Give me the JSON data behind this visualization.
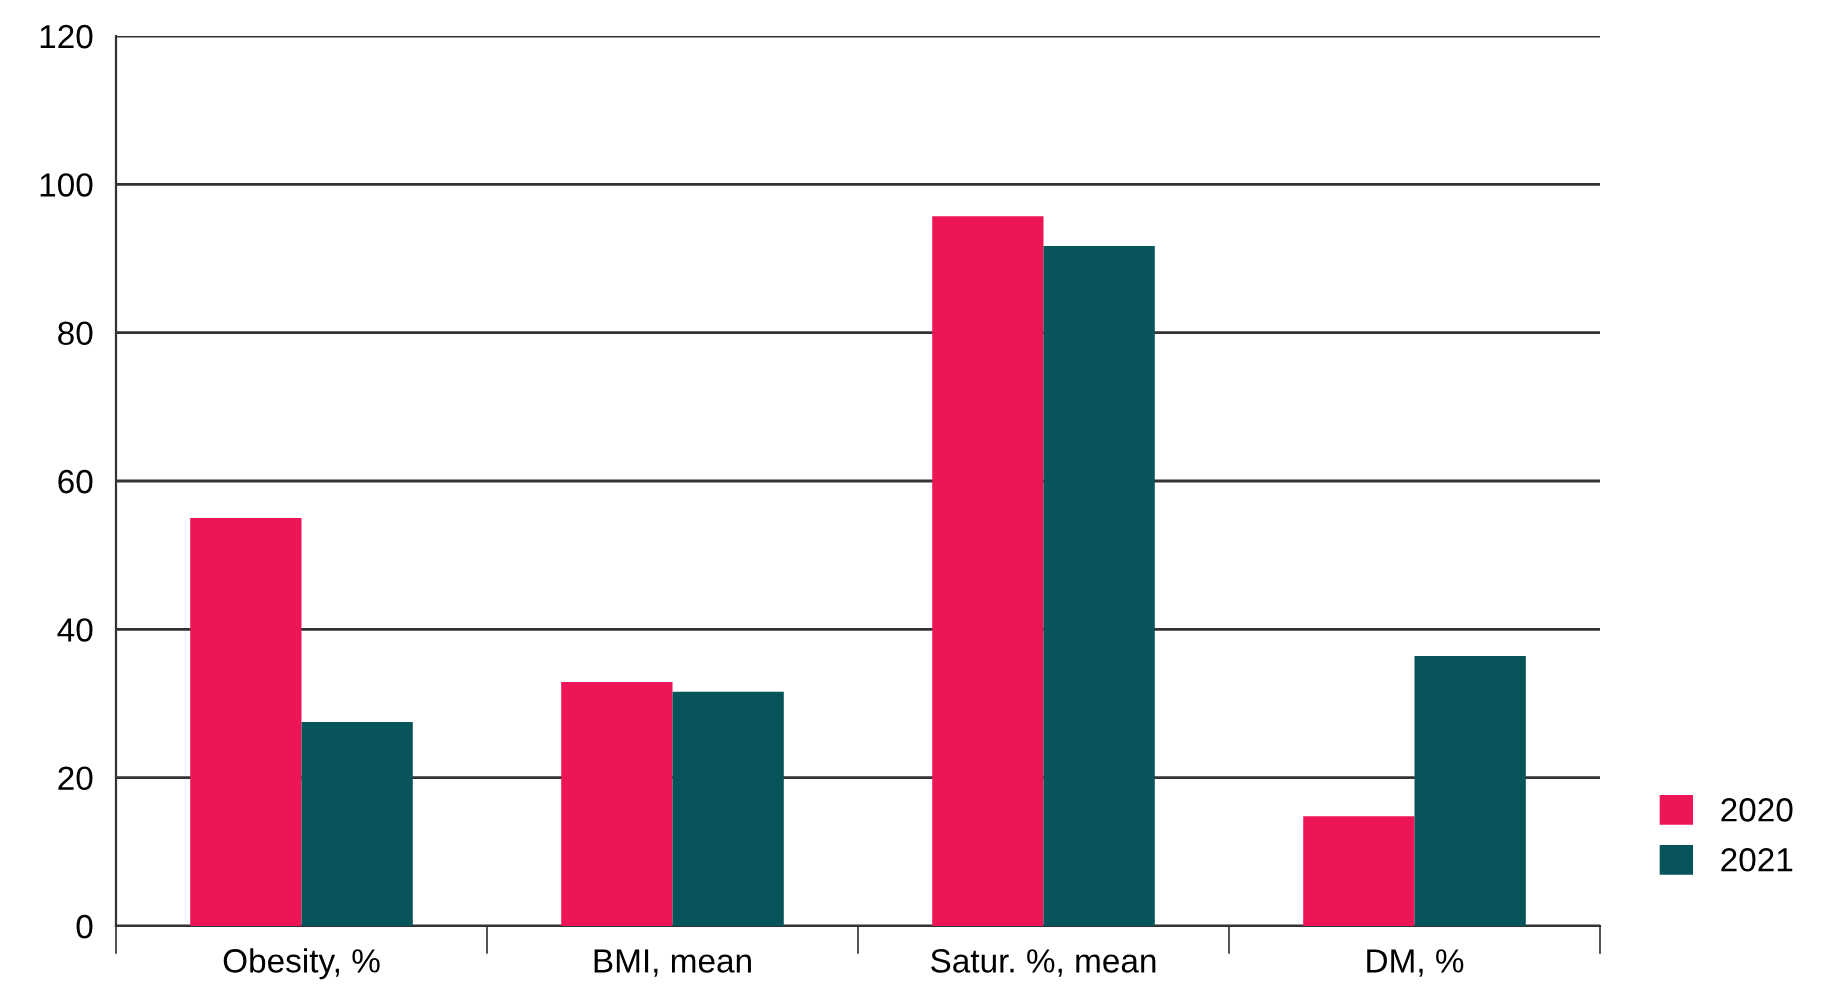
{
  "chart_data": {
    "type": "bar",
    "categories": [
      "Obesity, %",
      "BMI, mean",
      "Satur. %, mean",
      "DM, %"
    ],
    "series": [
      {
        "name": "2020",
        "color": "#ee1556",
        "values": [
          55,
          32.9,
          95.7,
          14.8
        ]
      },
      {
        "name": "2021",
        "color": "#07545a",
        "values": [
          27.5,
          31.6,
          91.7,
          36.4
        ]
      }
    ],
    "ylim": [
      0,
      120
    ],
    "yticks": [
      0,
      20,
      40,
      60,
      80,
      100,
      120
    ],
    "grid": "y",
    "legend": "bottom right"
  }
}
